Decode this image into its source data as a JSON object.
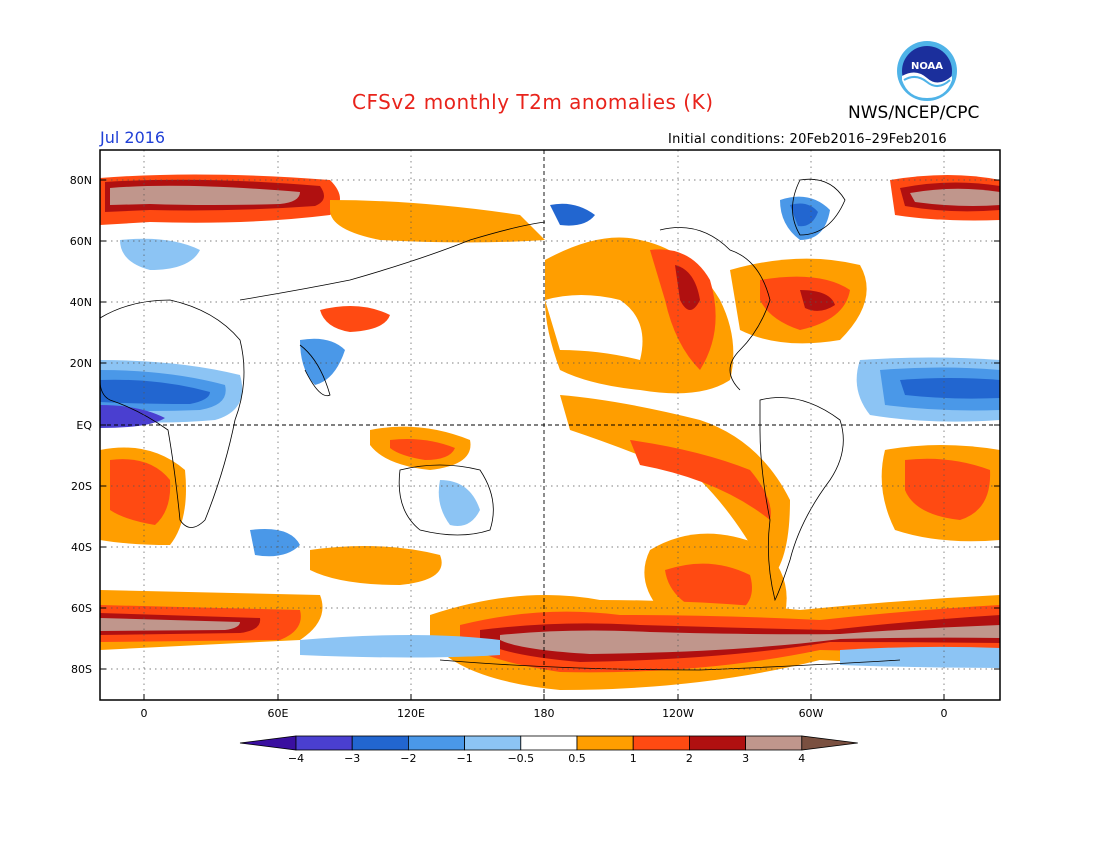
{
  "header": {
    "title": "CFSv2 monthly T2m anomalies (K)",
    "agency": "NWS/NCEP/CPC",
    "logo_text": "NOAA",
    "valid_month": "Jul 2016",
    "initial_conditions": "Initial conditions: 20Feb2016–29Feb2016"
  },
  "axes": {
    "lat_labels": [
      "80N",
      "60N",
      "40N",
      "20N",
      "EQ",
      "20S",
      "40S",
      "60S",
      "80S"
    ],
    "lon_labels": [
      "0",
      "60E",
      "120E",
      "180",
      "120W",
      "60W",
      "0"
    ]
  },
  "colorbar": {
    "labels": [
      "−4",
      "−3",
      "−2",
      "−1",
      "−0.5",
      "0.5",
      "1",
      "2",
      "3",
      "4"
    ],
    "colors": [
      "#3a0fa0",
      "#4a3fd0",
      "#2266d0",
      "#4a98e8",
      "#8cc4f4",
      "#ffffff",
      "#ff9e00",
      "#ff4a12",
      "#b01010",
      "#c0968c",
      "#7a5040"
    ]
  },
  "colors": {
    "title": "#e8231b",
    "valid_month": "#1f3fd6",
    "neg_1": "#8cc4f4",
    "neg_2": "#4a98e8",
    "neg_3": "#2266d0",
    "neg_4": "#4a3fd0",
    "pos_1": "#ff9e00",
    "pos_2": "#ff4a12",
    "pos_3": "#b01010",
    "pos_4": "#c0968c",
    "pos_5": "#7a5040"
  }
}
